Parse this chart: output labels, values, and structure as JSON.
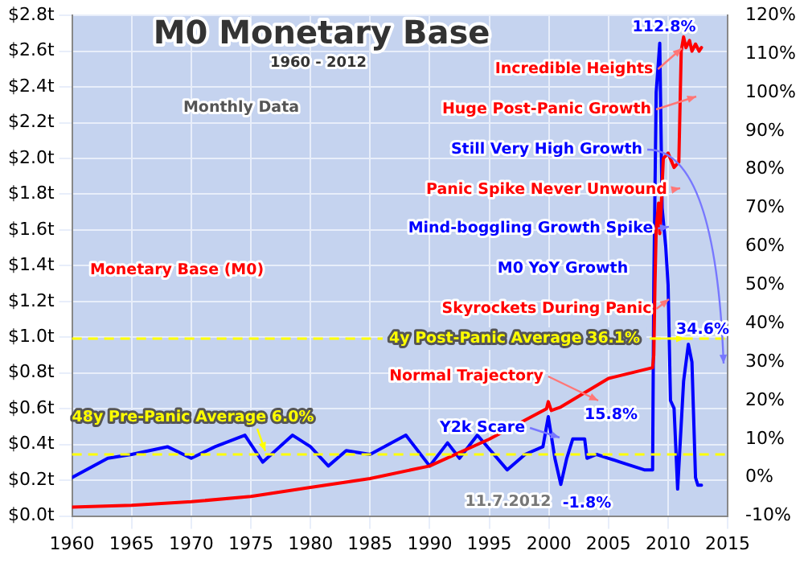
{
  "chart_data": {
    "type": "line",
    "title": "M0 Monetary Base",
    "subtitle": "1960 - 2012",
    "annotations": [
      "Monthly Data",
      "Incredible Heights",
      "Huge Post-Panic Growth",
      "Still Very High Growth",
      "Panic Spike Never Unwound",
      "Mind-boggling Growth Spike",
      "Skyrockets During Panic",
      "Normal Trajectory",
      "Y2k Scare",
      "11.7.2012",
      "112.8%",
      "15.8%",
      "-1.8%",
      "34.6%"
    ],
    "xlim": [
      1960,
      2015
    ],
    "xticks": [
      1960,
      1965,
      1970,
      1975,
      1980,
      1985,
      1990,
      1995,
      2000,
      2005,
      2010,
      2015
    ],
    "ylim": [
      0,
      2.8
    ],
    "yticks": [
      {
        "value": 0,
        "label": "$0.0t"
      },
      {
        "value": 0.2,
        "label": "$0.2t"
      },
      {
        "value": 0.4,
        "label": "$0.4t"
      },
      {
        "value": 0.6,
        "label": "$0.6t"
      },
      {
        "value": 0.8,
        "label": "$0.8t"
      },
      {
        "value": 1.0,
        "label": "$1.0t"
      },
      {
        "value": 1.2,
        "label": "$1.2t"
      },
      {
        "value": 1.4,
        "label": "$1.4t"
      },
      {
        "value": 1.6,
        "label": "$1.6t"
      },
      {
        "value": 1.8,
        "label": "$1.8t"
      },
      {
        "value": 2.0,
        "label": "$2.0t"
      },
      {
        "value": 2.2,
        "label": "$2.2t"
      },
      {
        "value": 2.4,
        "label": "$2.4t"
      },
      {
        "value": 2.6,
        "label": "$2.6t"
      },
      {
        "value": 2.8,
        "label": "$2.8t"
      }
    ],
    "y2lim": [
      -10,
      120
    ],
    "y2ticks": [
      {
        "value": -10,
        "label": "-10%"
      },
      {
        "value": 0,
        "label": "0%"
      },
      {
        "value": 10,
        "label": "10%"
      },
      {
        "value": 20,
        "label": "20%"
      },
      {
        "value": 30,
        "label": "30%"
      },
      {
        "value": 40,
        "label": "40%"
      },
      {
        "value": 50,
        "label": "50%"
      },
      {
        "value": 60,
        "label": "60%"
      },
      {
        "value": 70,
        "label": "70%"
      },
      {
        "value": 80,
        "label": "80%"
      },
      {
        "value": 90,
        "label": "90%"
      },
      {
        "value": 100,
        "label": "100%"
      },
      {
        "value": 110,
        "label": "110%"
      },
      {
        "value": 120,
        "label": "120%"
      }
    ],
    "grid": true,
    "legend": false,
    "marker": "none",
    "line_style": "solid",
    "ref_lines": [
      {
        "axis": "y2",
        "value": 6.0,
        "label": "48y Pre-Panic Average 6.0%",
        "color": "#ffff00",
        "line_style": "dashed"
      },
      {
        "axis": "y2",
        "value": 36.1,
        "label": "4y Post-Panic Average 36.1%",
        "color": "#ffff00",
        "line_style": "dashed"
      }
    ],
    "series": [
      {
        "name": "Monetary Base (M0)",
        "color": "#ff0000",
        "x": [
          1960,
          1965,
          1970,
          1975,
          1980,
          1985,
          1990,
          1995,
          1999.8,
          1999.95,
          2000.2,
          2001,
          2005,
          2008.7,
          2008.8,
          2008.9,
          2009.0,
          2009.2,
          2009.3,
          2009.4,
          2009.6,
          2010,
          2010.5,
          2010.9,
          2011.1,
          2011.3,
          2011.5,
          2011.8,
          2012,
          2012.3,
          2012.6,
          2012.8
        ],
        "values": [
          0.05,
          0.06,
          0.08,
          0.11,
          0.16,
          0.21,
          0.28,
          0.43,
          0.6,
          0.64,
          0.59,
          0.61,
          0.77,
          0.83,
          0.9,
          1.3,
          1.6,
          1.75,
          1.58,
          1.7,
          2.0,
          2.03,
          1.95,
          1.98,
          2.6,
          2.68,
          2.62,
          2.66,
          2.6,
          2.64,
          2.6,
          2.62
        ]
      },
      {
        "name": "M0 YoY Growth",
        "color": "#0000ff",
        "axis": "y2",
        "x": [
          1960,
          1963,
          1965,
          1968,
          1970,
          1972,
          1974.5,
          1976,
          1978.5,
          1980,
          1981.5,
          1983,
          1985,
          1988,
          1990,
          1991.5,
          1992.5,
          1994,
          1996.5,
          1998,
          1999.5,
          1999.95,
          2000.5,
          2001,
          2001.5,
          2002,
          2003,
          2003.2,
          2004,
          2005,
          2006,
          2007,
          2008,
          2008.7,
          2008.8,
          2009.0,
          2009.3,
          2009.5,
          2009.8,
          2010,
          2010.2,
          2010.5,
          2010.8,
          2011.3,
          2011.7,
          2012,
          2012.3,
          2012.5,
          2012.8
        ],
        "values": [
          0,
          5,
          6,
          8,
          5,
          8,
          11,
          4,
          11,
          8,
          3,
          7,
          6,
          11,
          3,
          9,
          5,
          11,
          2,
          6,
          8,
          15.8,
          5,
          -1.8,
          5,
          10,
          10,
          5,
          6,
          5,
          4,
          3,
          2,
          2,
          50,
          100,
          112.8,
          70,
          60,
          50,
          20,
          18,
          -3,
          25,
          34.6,
          30,
          0,
          -2,
          -2
        ]
      }
    ]
  }
}
